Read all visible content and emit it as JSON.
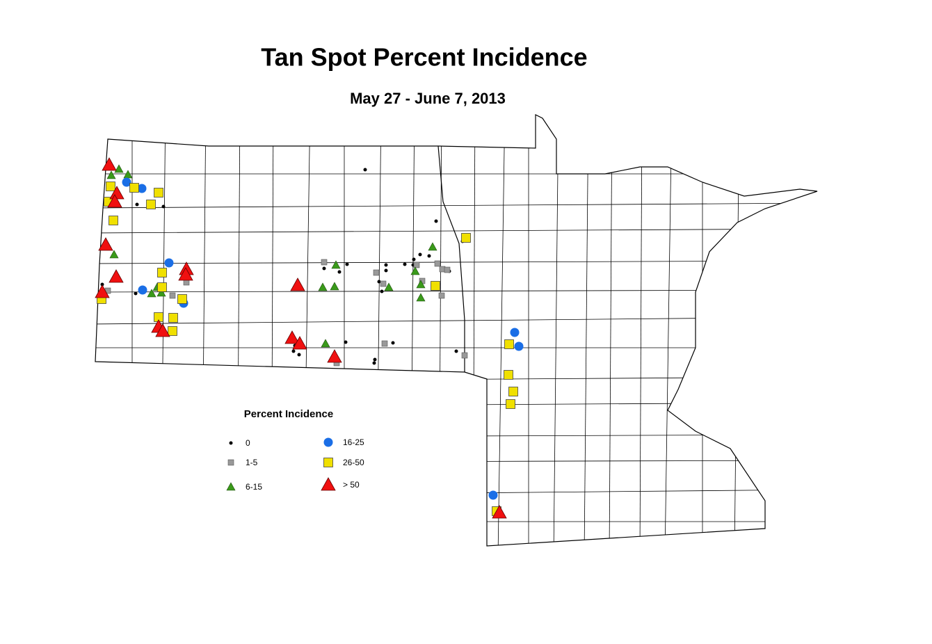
{
  "title": "Tan Spot Percent Incidence",
  "subtitle": "May 27 - June 7, 2013",
  "legend": {
    "title": "Percent Incidence",
    "items": [
      "0",
      "1-5",
      "6-15",
      "16-25",
      "26-50",
      "> 50"
    ]
  }
}
